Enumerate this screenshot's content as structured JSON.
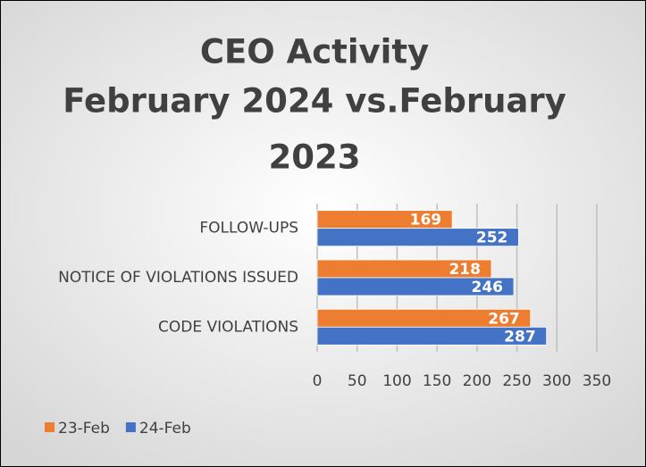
{
  "chart_data": {
    "type": "bar",
    "orientation": "horizontal",
    "title": [
      "CEO Activity",
      "February 2024 vs.February",
      "2023"
    ],
    "categories": [
      "FOLLOW-UPS",
      "NOTICE OF VIOLATIONS ISSUED",
      "CODE VIOLATIONS"
    ],
    "series": [
      {
        "name": "23-Feb",
        "color": "#ED7D31",
        "values": [
          169,
          218,
          267
        ]
      },
      {
        "name": "24-Feb",
        "color": "#4472C4",
        "values": [
          252,
          246,
          287
        ]
      }
    ],
    "xlim": [
      0,
      350
    ],
    "xticks": [
      0,
      50,
      100,
      150,
      200,
      250,
      300,
      350
    ],
    "grid": true,
    "legend": "bottom-left"
  }
}
